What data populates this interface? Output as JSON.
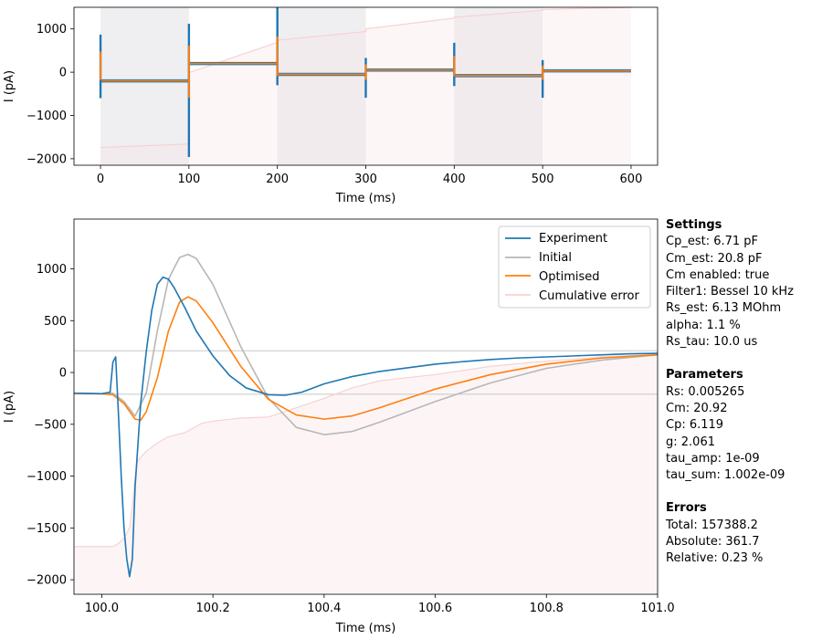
{
  "chart_data": [
    {
      "type": "line",
      "xlabel": "Time (ms)",
      "ylabel": "I (pA)",
      "xlim": [
        -30,
        630
      ],
      "ylim": [
        -2150,
        1500
      ],
      "xticks": [
        0,
        100,
        200,
        300,
        400,
        500,
        600
      ],
      "yticks": [
        -2000,
        -1000,
        0,
        1000
      ],
      "protocol_shading": [
        [
          0,
          100
        ],
        [
          200,
          300
        ],
        [
          400,
          500
        ]
      ],
      "steps": [
        {
          "t": [
            0,
            100
          ],
          "level": -200
        },
        {
          "t": [
            100,
            200
          ],
          "level": 200
        },
        {
          "t": [
            200,
            300
          ],
          "level": -50
        },
        {
          "t": [
            300,
            400
          ],
          "level": 50
        },
        {
          "t": [
            400,
            500
          ],
          "level": -80
        },
        {
          "t": [
            500,
            600
          ],
          "level": 30
        }
      ],
      "spikes": [
        {
          "t": 0,
          "max": 870,
          "min": -600
        },
        {
          "t": 100,
          "max": 1120,
          "min": -1960
        },
        {
          "t": 200,
          "max": 1500,
          "min": -300
        },
        {
          "t": 300,
          "max": 330,
          "min": -590
        },
        {
          "t": 400,
          "max": 680,
          "min": -320
        },
        {
          "t": 500,
          "max": 280,
          "min": -590
        }
      ],
      "cumulative_error": {
        "x": [
          0,
          100,
          100.01,
          200,
          200.01,
          300,
          300.01,
          400,
          400.01,
          500,
          500.01,
          600
        ],
        "y": [
          -1740,
          -1660,
          -10,
          690,
          740,
          940,
          1000,
          1250,
          1270,
          1430,
          1450,
          1500
        ]
      }
    },
    {
      "type": "line",
      "xlabel": "Time (ms)",
      "ylabel": "I (pA)",
      "xlim": [
        99.95,
        101.0
      ],
      "ylim": [
        -2140,
        1480
      ],
      "xticks": [
        100.0,
        100.2,
        100.4,
        100.6,
        100.8,
        101.0
      ],
      "xtick_labels": [
        "100.0",
        "100.2",
        "100.4",
        "100.6",
        "100.8",
        "101.0"
      ],
      "yticks": [
        -2000,
        -1500,
        -1000,
        -500,
        0,
        500,
        1000
      ],
      "hlines": [
        210,
        -210
      ],
      "legend_position": "top-right",
      "series": [
        {
          "name": "Experiment",
          "color": "#1f77b4",
          "x": [
            99.95,
            100.0,
            100.015,
            100.02,
            100.025,
            100.03,
            100.035,
            100.04,
            100.045,
            100.05,
            100.055,
            100.06,
            100.07,
            100.08,
            100.09,
            100.1,
            100.11,
            100.12,
            100.13,
            100.15,
            100.17,
            100.2,
            100.23,
            100.26,
            100.3,
            100.33,
            100.36,
            100.4,
            100.45,
            100.5,
            100.55,
            100.6,
            100.65,
            100.7,
            100.75,
            100.8,
            100.85,
            100.9,
            100.95,
            101.0
          ],
          "y": [
            -200,
            -205,
            -190,
            100,
            150,
            -400,
            -1000,
            -1500,
            -1800,
            -1970,
            -1800,
            -1100,
            -300,
            200,
            600,
            850,
            920,
            900,
            820,
            620,
            400,
            160,
            -30,
            -150,
            -215,
            -220,
            -190,
            -110,
            -40,
            10,
            45,
            80,
            105,
            125,
            140,
            150,
            160,
            170,
            180,
            185
          ]
        },
        {
          "name": "Initial",
          "color": "#b7b7b7",
          "x": [
            99.95,
            100.0,
            100.02,
            100.04,
            100.06,
            100.08,
            100.1,
            100.12,
            100.14,
            100.155,
            100.17,
            100.2,
            100.25,
            100.3,
            100.35,
            100.4,
            100.45,
            100.5,
            100.6,
            100.7,
            100.8,
            100.9,
            101.0
          ],
          "y": [
            -200,
            -205,
            -200,
            -280,
            -420,
            -200,
            400,
            900,
            1110,
            1140,
            1100,
            850,
            250,
            -250,
            -530,
            -600,
            -570,
            -480,
            -280,
            -100,
            40,
            120,
            170
          ]
        },
        {
          "name": "Optimised",
          "color": "#ff7f0e",
          "x": [
            99.95,
            100.0,
            100.02,
            100.04,
            100.06,
            100.07,
            100.08,
            100.1,
            100.12,
            100.14,
            100.155,
            100.17,
            100.2,
            100.25,
            100.3,
            100.35,
            100.4,
            100.45,
            100.5,
            100.6,
            100.7,
            100.8,
            100.9,
            101.0
          ],
          "y": [
            -200,
            -205,
            -215,
            -300,
            -450,
            -460,
            -380,
            -50,
            400,
            680,
            730,
            690,
            480,
            60,
            -260,
            -410,
            -450,
            -420,
            -340,
            -160,
            -20,
            80,
            140,
            170
          ]
        },
        {
          "name": "Cumulative error",
          "color": "#f7d2d2",
          "x": [
            99.95,
            100.02,
            100.03,
            100.04,
            100.05,
            100.055,
            100.06,
            100.065,
            100.08,
            100.1,
            100.12,
            100.15,
            100.18,
            100.2,
            100.25,
            100.3,
            100.35,
            100.4,
            100.45,
            100.5,
            100.6,
            100.7,
            100.8,
            100.9,
            101.0
          ],
          "y": [
            -1680,
            -1680,
            -1650,
            -1600,
            -1500,
            -1300,
            -1000,
            -850,
            -760,
            -680,
            -620,
            -580,
            -490,
            -470,
            -440,
            -430,
            -340,
            -250,
            -150,
            -80,
            -20,
            60,
            110,
            150,
            175
          ]
        }
      ]
    }
  ],
  "panel": {
    "settings_title": "Settings",
    "settings": [
      "Cp_est: 6.71 pF",
      "Cm_est: 20.8 pF",
      "Cm enabled: true",
      "Filter1: Bessel 10 kHz",
      "Rs_est: 6.13 MOhm",
      "alpha: 1.1 %",
      "Rs_tau: 10.0 us"
    ],
    "parameters_title": "Parameters",
    "parameters": [
      "Rs: 0.005265",
      "Cm: 20.92",
      "Cp: 6.119",
      "g: 2.061",
      "tau_amp: 1e-09",
      "tau_sum: 1.002e-09"
    ],
    "errors_title": "Errors",
    "errors": [
      "Total: 157388.2",
      "Absolute: 361.7",
      "Relative: 0.23 %"
    ]
  }
}
